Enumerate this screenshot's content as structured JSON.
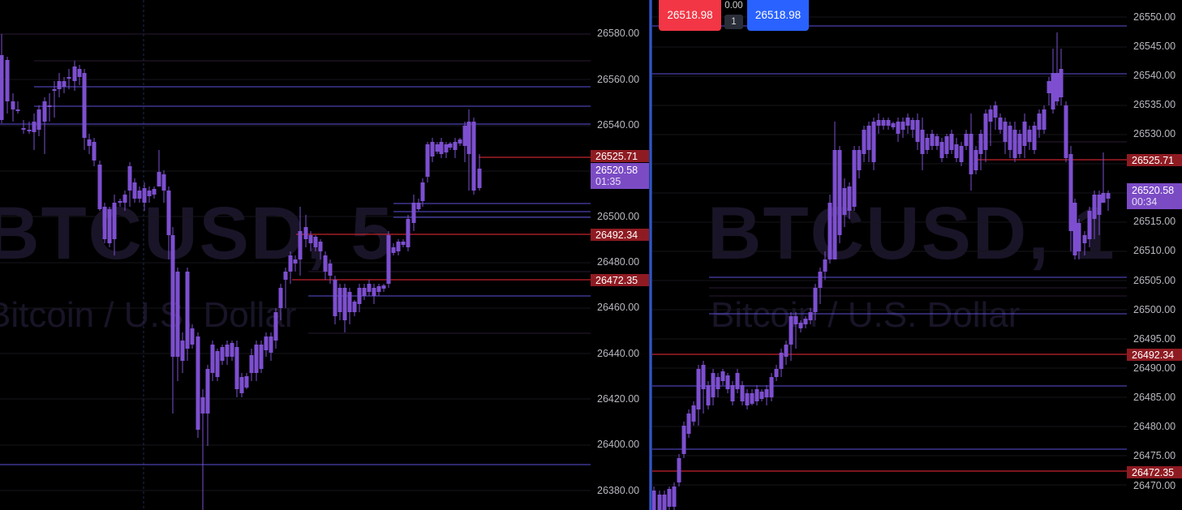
{
  "symbol_watermarks": {
    "left": {
      "title": "BTCUSD, 5",
      "subtitle": "Bitcoin / U.S. Dollar"
    },
    "right": {
      "title": "BTCUSD, 1",
      "subtitle": "Bitcoin / U.S. Dollar"
    }
  },
  "trade_panel": {
    "sell_price": "26518.98",
    "buy_price": "26518.98",
    "spread": "0.00",
    "quantity": "1"
  },
  "colors": {
    "candle": "#7d4fd0",
    "support_line": "#c3232d",
    "horizontal_line": "#5b4fd8",
    "divider": "#2f55c0"
  },
  "left_chart": {
    "timeframe": "5",
    "axis_ticks": [
      "26580.00",
      "26560.00",
      "26540.00",
      "26500.00",
      "26480.00",
      "26460.00",
      "26440.00",
      "26420.00",
      "26400.00",
      "26380.00"
    ],
    "price_tags": [
      {
        "value": "26525.71",
        "kind": "red"
      },
      {
        "value": "26492.34",
        "kind": "red"
      },
      {
        "value": "26472.35",
        "kind": "red"
      }
    ],
    "last_price": {
      "value": "26520.58",
      "countdown": "01:35"
    }
  },
  "right_chart": {
    "timeframe": "1",
    "axis_ticks": [
      "26550.00",
      "26545.00",
      "26540.00",
      "26535.00",
      "26530.00",
      "26515.00",
      "26510.00",
      "26505.00",
      "26500.00",
      "26495.00",
      "26490.00",
      "26485.00",
      "26480.00",
      "26475.00",
      "26470.00"
    ],
    "price_tags": [
      {
        "value": "26525.71",
        "kind": "red"
      },
      {
        "value": "26492.34",
        "kind": "red"
      },
      {
        "value": "26472.35",
        "kind": "red"
      }
    ],
    "last_price": {
      "value": "26520.58",
      "countdown": "00:34"
    }
  }
}
